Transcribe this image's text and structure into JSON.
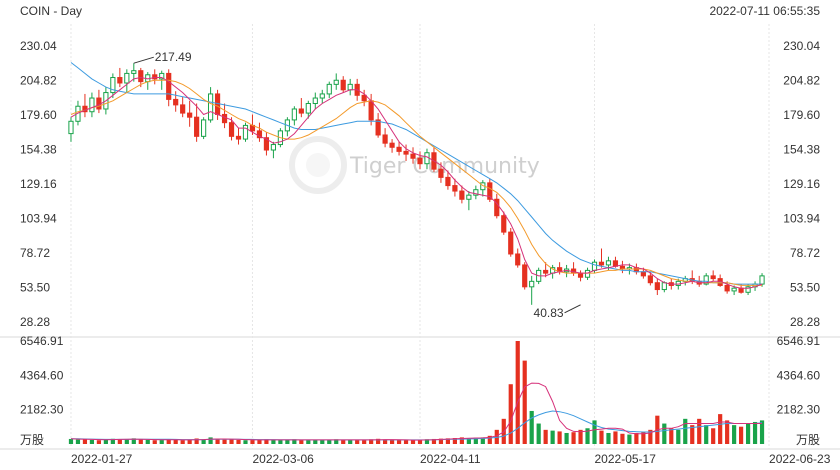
{
  "header": {
    "symbol": "COIN - Day",
    "timestamp": "2022-07-11 06:55:35"
  },
  "watermark": {
    "text": "Tiger Community"
  },
  "colors": {
    "up": "#19a34a",
    "down": "#e53020",
    "ma_short": "#d6317a",
    "ma_mid": "#f39a2b",
    "ma_long": "#3d9be0",
    "grid": "#e6e6e6",
    "text": "#333333"
  },
  "price_axis": {
    "ticks": [
      "230.04",
      "204.82",
      "179.60",
      "154.38",
      "129.16",
      "103.94",
      "78.72",
      "53.50",
      "28.28"
    ],
    "min": 28.28,
    "max": 230.04
  },
  "volume_axis": {
    "ticks": [
      "6546.91",
      "4364.60",
      "2182.30"
    ],
    "unit": "万股",
    "max": 6546.91
  },
  "x_axis": {
    "labels": [
      {
        "text": "2022-01-27",
        "index": 0
      },
      {
        "text": "2022-03-06",
        "index": 26
      },
      {
        "text": "2022-04-11",
        "index": 50
      },
      {
        "text": "2022-05-17",
        "index": 75
      },
      {
        "text": "2022-06-23",
        "index": 100
      }
    ]
  },
  "annotations": {
    "high": {
      "text": "217.49",
      "index": 9
    },
    "low": {
      "text": "40.83",
      "index": 73
    }
  },
  "chart_data": {
    "type": "candlestick",
    "series": [
      {
        "name": "COIN",
        "ohlc": [
          [
            166,
            178,
            160,
            175
          ],
          [
            175,
            190,
            172,
            186
          ],
          [
            186,
            195,
            178,
            182
          ],
          [
            182,
            196,
            178,
            192
          ],
          [
            192,
            198,
            181,
            184
          ],
          [
            184,
            200,
            180,
            196
          ],
          [
            196,
            210,
            192,
            207
          ],
          [
            207,
            214,
            200,
            203
          ],
          [
            203,
            213,
            196,
            210
          ],
          [
            210,
            217.49,
            204,
            212
          ],
          [
            212,
            214,
            200,
            204
          ],
          [
            204,
            211,
            198,
            209
          ],
          [
            209,
            213,
            202,
            206
          ],
          [
            206,
            212,
            198,
            210
          ],
          [
            210,
            213,
            186,
            191
          ],
          [
            191,
            197,
            182,
            187
          ],
          [
            187,
            193,
            178,
            181
          ],
          [
            181,
            190,
            171,
            178
          ],
          [
            178,
            188,
            160,
            164
          ],
          [
            164,
            178,
            162,
            176
          ],
          [
            176,
            200,
            174,
            195
          ],
          [
            195,
            198,
            176,
            180
          ],
          [
            180,
            188,
            170,
            174
          ],
          [
            174,
            178,
            161,
            164
          ],
          [
            164,
            170,
            158,
            162
          ],
          [
            162,
            174,
            160,
            172
          ],
          [
            172,
            180,
            165,
            168
          ],
          [
            168,
            174,
            160,
            163
          ],
          [
            163,
            167,
            150,
            154
          ],
          [
            154,
            160,
            148,
            158
          ],
          [
            158,
            170,
            156,
            168
          ],
          [
            168,
            178,
            164,
            176
          ],
          [
            176,
            186,
            172,
            184
          ],
          [
            184,
            192,
            178,
            181
          ],
          [
            181,
            190,
            177,
            188
          ],
          [
            188,
            196,
            184,
            192
          ],
          [
            192,
            198,
            188,
            195
          ],
          [
            195,
            204,
            192,
            202
          ],
          [
            202,
            210,
            198,
            205
          ],
          [
            205,
            208,
            196,
            198
          ],
          [
            198,
            206,
            194,
            202
          ],
          [
            202,
            206,
            190,
            194
          ],
          [
            194,
            198,
            186,
            190
          ],
          [
            190,
            195,
            172,
            176
          ],
          [
            176,
            181,
            163,
            165
          ],
          [
            165,
            170,
            156,
            159
          ],
          [
            159,
            162,
            152,
            156
          ],
          [
            156,
            160,
            150,
            153
          ],
          [
            153,
            158,
            146,
            151
          ],
          [
            151,
            156,
            144,
            148
          ],
          [
            148,
            153,
            140,
            144
          ],
          [
            144,
            155,
            140,
            152
          ],
          [
            152,
            156,
            138,
            140
          ],
          [
            140,
            145,
            130,
            134
          ],
          [
            134,
            139,
            125,
            128
          ],
          [
            128,
            133,
            120,
            124
          ],
          [
            124,
            128,
            115,
            118
          ],
          [
            118,
            124,
            110,
            121
          ],
          [
            121,
            128,
            118,
            125
          ],
          [
            125,
            132,
            120,
            130
          ],
          [
            130,
            133,
            116,
            118
          ],
          [
            118,
            122,
            104,
            106
          ],
          [
            106,
            109,
            92,
            94
          ],
          [
            94,
            97,
            76,
            78
          ],
          [
            78,
            82,
            68,
            70
          ],
          [
            70,
            72,
            52,
            54
          ],
          [
            54,
            62,
            40.83,
            58
          ],
          [
            58,
            68,
            56,
            66
          ],
          [
            66,
            72,
            61,
            64
          ],
          [
            64,
            70,
            60,
            68
          ],
          [
            68,
            72,
            63,
            65
          ],
          [
            65,
            70,
            61,
            67
          ],
          [
            67,
            72,
            62,
            64
          ],
          [
            64,
            66,
            58,
            61
          ],
          [
            61,
            68,
            59,
            66
          ],
          [
            66,
            74,
            64,
            72
          ],
          [
            72,
            82,
            68,
            70
          ],
          [
            70,
            76,
            66,
            73
          ],
          [
            73,
            76,
            68,
            69
          ],
          [
            69,
            73,
            64,
            67
          ],
          [
            67,
            71,
            63,
            68
          ],
          [
            68,
            71,
            63,
            65
          ],
          [
            65,
            68,
            60,
            62
          ],
          [
            62,
            65,
            55,
            57
          ],
          [
            57,
            60,
            48,
            52
          ],
          [
            52,
            58,
            50,
            57
          ],
          [
            57,
            60,
            52,
            55
          ],
          [
            55,
            60,
            52,
            58
          ],
          [
            58,
            62,
            55,
            60
          ],
          [
            60,
            66,
            56,
            58
          ],
          [
            58,
            62,
            54,
            56
          ],
          [
            56,
            64,
            55,
            62
          ],
          [
            62,
            66,
            58,
            60
          ],
          [
            60,
            63,
            54,
            55
          ],
          [
            55,
            58,
            49,
            51
          ],
          [
            51,
            55,
            48,
            53
          ],
          [
            53,
            56,
            49,
            50
          ],
          [
            50,
            56,
            48,
            54
          ],
          [
            54,
            58,
            51,
            56
          ],
          [
            56,
            64,
            54,
            62
          ]
        ],
        "volume": [
          320,
          280,
          300,
          260,
          240,
          260,
          330,
          300,
          280,
          360,
          300,
          260,
          240,
          250,
          300,
          270,
          240,
          260,
          350,
          300,
          420,
          330,
          280,
          300,
          260,
          240,
          250,
          260,
          300,
          260,
          250,
          270,
          300,
          240,
          230,
          250,
          260,
          280,
          300,
          260,
          250,
          240,
          230,
          300,
          330,
          290,
          260,
          250,
          240,
          260,
          270,
          300,
          320,
          340,
          360,
          380,
          420,
          360,
          400,
          420,
          520,
          900,
          1600,
          3800,
          6546.91,
          5300,
          2100,
          1300,
          900,
          850,
          800,
          700,
          750,
          900,
          1000,
          1500,
          850,
          700,
          800,
          650,
          600,
          700,
          750,
          900,
          1800,
          1300,
          1000,
          900,
          1600,
          1200,
          1600,
          1200,
          1000,
          1900,
          1500,
          1200,
          1100,
          1300,
          1400,
          1500
        ],
        "ma_short": [
          178,
          181,
          183,
          185,
          187,
          190,
          194,
          198,
          202,
          206,
          207,
          206,
          207,
          207,
          204,
          200,
          196,
          191,
          186,
          180,
          182,
          180,
          178,
          176,
          170,
          170,
          167,
          164,
          162,
          159,
          160,
          162,
          166,
          172,
          178,
          184,
          188,
          191,
          194,
          196,
          198,
          198,
          195,
          190,
          184,
          176,
          168,
          160,
          155,
          152,
          150,
          149,
          146,
          143,
          138,
          132,
          127,
          123,
          122,
          121,
          120,
          115,
          108,
          100,
          89,
          74,
          64,
          62,
          62,
          64,
          65,
          66,
          65,
          64,
          64,
          66,
          67,
          68,
          69,
          70,
          70,
          68,
          67,
          64,
          60,
          57,
          56,
          56,
          57,
          58,
          57,
          57,
          58,
          58,
          56,
          54,
          53,
          53,
          54,
          56
        ],
        "ma_mid": [
          180,
          182,
          183,
          185,
          186,
          188,
          190,
          193,
          196,
          199,
          202,
          204,
          205,
          205,
          205,
          204,
          202,
          199,
          195,
          191,
          188,
          186,
          183,
          180,
          177,
          175,
          172,
          170,
          167,
          165,
          163,
          162,
          162,
          163,
          165,
          168,
          171,
          174,
          177,
          181,
          185,
          188,
          189,
          190,
          189,
          187,
          183,
          179,
          174,
          169,
          164,
          160,
          156,
          152,
          148,
          144,
          140,
          136,
          132,
          128,
          126,
          123,
          118,
          112,
          104,
          95,
          85,
          77,
          71,
          67,
          65,
          64,
          64,
          64,
          64,
          64,
          65,
          66,
          66,
          67,
          67,
          67,
          67,
          66,
          64,
          62,
          60,
          59,
          58,
          58,
          57,
          57,
          57,
          57,
          57,
          56,
          55,
          55,
          55,
          55
        ],
        "ma_long": [
          218,
          214,
          210,
          206,
          203,
          200,
          198,
          197,
          196,
          195,
          195,
          195,
          195,
          195,
          195,
          194,
          193,
          192,
          191,
          190,
          189,
          188,
          187,
          186,
          185,
          184,
          182,
          180,
          178,
          176,
          174,
          172,
          170,
          169,
          169,
          169,
          170,
          171,
          172,
          173,
          174,
          175,
          175,
          175,
          175,
          174,
          173,
          171,
          169,
          166,
          163,
          160,
          157,
          154,
          151,
          148,
          145,
          142,
          139,
          136,
          133,
          130,
          126,
          122,
          117,
          111,
          105,
          99,
          93,
          88,
          84,
          80,
          77,
          74,
          72,
          70,
          69,
          68,
          67,
          66,
          66,
          65,
          65,
          65,
          64,
          63,
          62,
          61,
          60,
          59,
          58,
          58,
          57,
          57,
          57,
          56,
          56,
          56,
          56,
          56
        ],
        "vol_ma_short": [
          330,
          310,
          300,
          290,
          280,
          270,
          280,
          290,
          300,
          310,
          300,
          290,
          280,
          270,
          270,
          270,
          260,
          260,
          270,
          280,
          310,
          320,
          320,
          310,
          300,
          280,
          270,
          260,
          260,
          260,
          260,
          260,
          260,
          260,
          260,
          260,
          260,
          260,
          260,
          260,
          260,
          260,
          260,
          260,
          270,
          280,
          280,
          270,
          260,
          250,
          250,
          260,
          270,
          290,
          310,
          330,
          350,
          360,
          380,
          390,
          420,
          520,
          760,
          1450,
          2670,
          3630,
          3870,
          3850,
          3650,
          2700,
          1500,
          1000,
          800,
          780,
          820,
          900,
          950,
          1000,
          1000,
          950,
          700,
          650,
          650,
          700,
          900,
          1000,
          1000,
          1100,
          1300,
          1300,
          1300,
          1300,
          1300,
          1400,
          1400,
          1300,
          1300,
          1300,
          1300,
          1300
        ],
        "vol_ma_mid": [
          340,
          330,
          320,
          310,
          300,
          290,
          290,
          290,
          290,
          300,
          300,
          300,
          300,
          300,
          300,
          290,
          280,
          280,
          280,
          280,
          290,
          300,
          300,
          300,
          300,
          290,
          290,
          280,
          280,
          280,
          270,
          270,
          270,
          260,
          260,
          260,
          260,
          260,
          260,
          260,
          260,
          260,
          260,
          260,
          260,
          260,
          260,
          260,
          260,
          260,
          260,
          260,
          270,
          280,
          290,
          300,
          310,
          320,
          340,
          350,
          380,
          420,
          500,
          700,
          1000,
          1350,
          1650,
          1850,
          2000,
          2100,
          2050,
          1950,
          1800,
          1600,
          1400,
          1200,
          1050,
          950,
          900,
          850,
          800,
          780,
          760,
          760,
          800,
          850,
          900,
          950,
          1000,
          1050,
          1100,
          1150,
          1200,
          1250,
          1300,
          1300,
          1300,
          1300,
          1300,
          1350
        ]
      }
    ],
    "ylim": [
      28.28,
      230.04
    ],
    "volume_ylim": [
      0,
      6546.91
    ],
    "grid": true
  }
}
